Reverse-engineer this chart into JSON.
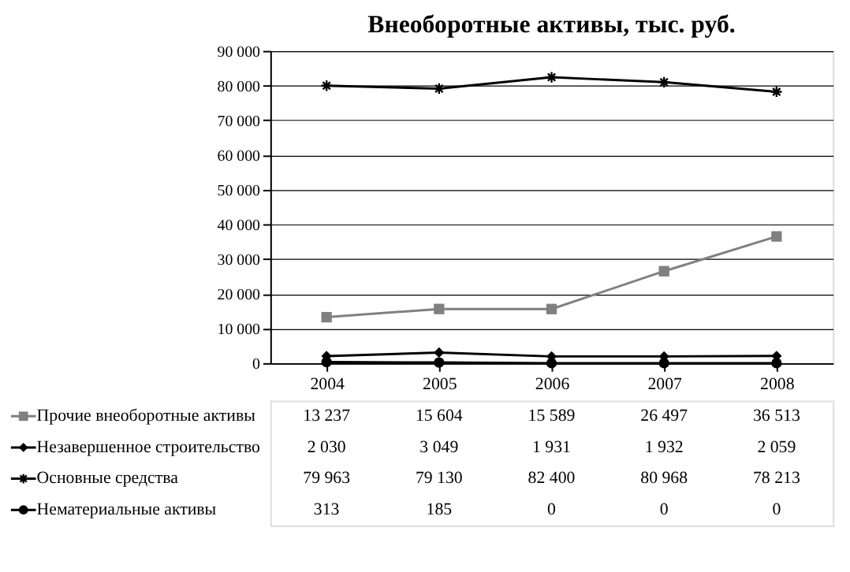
{
  "chart_data": {
    "type": "line",
    "title": "Внеоборотные активы, тыс. руб.",
    "categories": [
      "2004",
      "2005",
      "2006",
      "2007",
      "2008"
    ],
    "series": [
      {
        "name": "Прочие внеоборотные активы",
        "color": "#808080",
        "marker": "square",
        "values": [
          13237,
          15604,
          15589,
          26497,
          36513
        ]
      },
      {
        "name": "Незавершенное строительство",
        "color": "#000000",
        "marker": "diamond",
        "values": [
          2030,
          3049,
          1931,
          1932,
          2059
        ]
      },
      {
        "name": "Основные средства",
        "color": "#000000",
        "marker": "cross",
        "values": [
          79963,
          79130,
          82400,
          80968,
          78213
        ]
      },
      {
        "name": "Нематериальные активы",
        "color": "#000000",
        "marker": "circle",
        "values": [
          313,
          185,
          0,
          0,
          0
        ]
      }
    ],
    "ylim": [
      0,
      90000
    ],
    "yticks": [
      {
        "value": 0,
        "label": "0"
      },
      {
        "value": 10000,
        "label": "10 000"
      },
      {
        "value": 20000,
        "label": "20 000"
      },
      {
        "value": 30000,
        "label": "30 000"
      },
      {
        "value": 40000,
        "label": "40 000"
      },
      {
        "value": 50000,
        "label": "50 000"
      },
      {
        "value": 60000,
        "label": "60 000"
      },
      {
        "value": 70000,
        "label": "70 000"
      },
      {
        "value": 80000,
        "label": "80 000"
      },
      {
        "value": 90000,
        "label": "90 000"
      }
    ],
    "grid": "y",
    "legend": "bottom left",
    "data_labels": true,
    "line_style": "solid"
  }
}
